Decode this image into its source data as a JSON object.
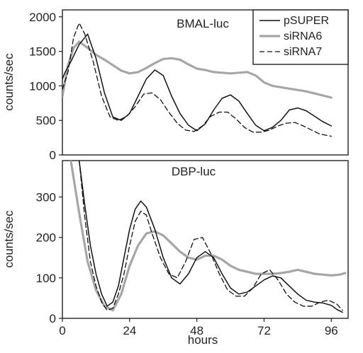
{
  "chart_data": [
    {
      "type": "line",
      "title": "BMAL-luc",
      "xlabel": "",
      "ylabel": "counts/sec",
      "xlim": [
        0,
        102
      ],
      "ylim": [
        0,
        2100
      ],
      "yticks": [
        0,
        500,
        1000,
        1500,
        2000
      ],
      "grid": false,
      "legend": "top-right",
      "series": [
        {
          "name": "pSUPER",
          "x": [
            0,
            1,
            3,
            6,
            9,
            12,
            15,
            18,
            21,
            24,
            27,
            30,
            33,
            36,
            39,
            42,
            45,
            48,
            51,
            54,
            57,
            60,
            63,
            66,
            69,
            72,
            75,
            78,
            81,
            84,
            87,
            90,
            93,
            96
          ],
          "y": [
            1100,
            1200,
            1350,
            1600,
            1750,
            1400,
            900,
            550,
            500,
            600,
            850,
            1100,
            1230,
            1150,
            850,
            600,
            430,
            350,
            450,
            650,
            820,
            870,
            780,
            600,
            430,
            350,
            400,
            500,
            650,
            680,
            640,
            560,
            480,
            420
          ]
        },
        {
          "name": "siRNA6",
          "x": [
            0,
            2,
            4,
            6,
            9,
            12,
            15,
            18,
            21,
            24,
            27,
            30,
            33,
            36,
            39,
            42,
            45,
            48,
            51,
            54,
            57,
            60,
            63,
            66,
            69,
            72,
            75,
            78,
            81,
            84,
            87,
            90,
            93,
            96
          ],
          "y": [
            850,
            1300,
            1550,
            1640,
            1550,
            1450,
            1380,
            1300,
            1220,
            1180,
            1200,
            1260,
            1330,
            1390,
            1400,
            1380,
            1310,
            1250,
            1230,
            1200,
            1190,
            1180,
            1190,
            1200,
            1150,
            1050,
            1000,
            980,
            960,
            940,
            920,
            890,
            860,
            830
          ]
        },
        {
          "name": "siRNA7",
          "x": [
            0,
            2,
            4,
            6,
            8,
            11,
            14,
            17,
            20,
            23,
            26,
            29,
            32,
            35,
            38,
            41,
            44,
            47,
            50,
            53,
            56,
            59,
            62,
            65,
            68,
            71,
            74,
            77,
            80,
            83,
            86,
            89,
            92,
            95,
            96
          ],
          "y": [
            950,
            1200,
            1700,
            1910,
            1750,
            1350,
            850,
            550,
            500,
            560,
            700,
            880,
            900,
            800,
            620,
            460,
            360,
            340,
            420,
            560,
            620,
            620,
            520,
            400,
            330,
            330,
            360,
            420,
            460,
            470,
            420,
            360,
            300,
            280,
            270
          ]
        }
      ]
    },
    {
      "type": "line",
      "title": "DBP-luc",
      "xlabel": "hours",
      "ylabel": "counts/sec",
      "xlim": [
        0,
        102
      ],
      "ylim": [
        0,
        390
      ],
      "xticks": [
        0,
        24,
        48,
        72,
        96
      ],
      "yticks": [
        0,
        100,
        200,
        300
      ],
      "grid": false,
      "series": [
        {
          "name": "pSUPER",
          "x": [
            6,
            8,
            10,
            12,
            14,
            16,
            18,
            20,
            22,
            24,
            26,
            28,
            30,
            33,
            36,
            39,
            42,
            45,
            48,
            51,
            54,
            57,
            60,
            63,
            66,
            69,
            72,
            75,
            78,
            81,
            84,
            87,
            90,
            93,
            96,
            98,
            100
          ],
          "y": [
            390,
            280,
            180,
            110,
            60,
            30,
            40,
            80,
            150,
            220,
            270,
            290,
            275,
            220,
            150,
            100,
            85,
            110,
            150,
            165,
            150,
            110,
            75,
            60,
            65,
            80,
            95,
            105,
            100,
            80,
            60,
            45,
            40,
            38,
            32,
            22,
            15
          ]
        },
        {
          "name": "siRNA6",
          "x": [
            3,
            6,
            9,
            12,
            15,
            18,
            21,
            24,
            27,
            30,
            33,
            36,
            39,
            42,
            45,
            48,
            51,
            54,
            57,
            60,
            63,
            66,
            69,
            72,
            75,
            78,
            81,
            84,
            87,
            90,
            93,
            96,
            99,
            101
          ],
          "y": [
            390,
            260,
            140,
            70,
            30,
            20,
            60,
            130,
            180,
            210,
            215,
            205,
            185,
            165,
            150,
            145,
            155,
            155,
            145,
            130,
            120,
            115,
            110,
            110,
            110,
            112,
            115,
            120,
            115,
            110,
            108,
            106,
            108,
            112
          ]
        },
        {
          "name": "siRNA7",
          "x": [
            6,
            8,
            10,
            12,
            14,
            16,
            18,
            20,
            22,
            24,
            26,
            28,
            30,
            32,
            35,
            38,
            41,
            44,
            47,
            50,
            53,
            56,
            59,
            62,
            65,
            68,
            71,
            74,
            77,
            80,
            83,
            86,
            89,
            92,
            95,
            98,
            100
          ],
          "y": [
            390,
            250,
            140,
            80,
            40,
            20,
            25,
            60,
            110,
            180,
            240,
            265,
            255,
            210,
            150,
            110,
            100,
            140,
            195,
            200,
            160,
            110,
            70,
            55,
            55,
            75,
            110,
            120,
            95,
            60,
            40,
            30,
            30,
            40,
            45,
            35,
            20
          ]
        }
      ]
    }
  ]
}
